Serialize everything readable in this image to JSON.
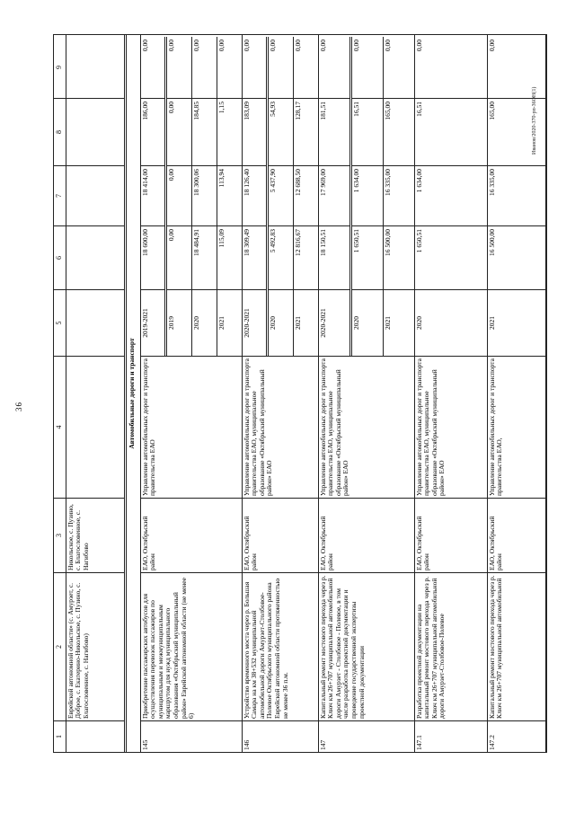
{
  "page": {
    "number": "36",
    "footnote": "Иванов/2020-370-рп-36ОН(1)"
  },
  "table": {
    "col_headers": [
      "1",
      "2",
      "3",
      "4",
      "5",
      "6",
      "7",
      "8",
      "9"
    ],
    "section_title": "Автомобильные дороги и транспорт",
    "carryover_row": {
      "name": "Еврейской автономной области» (с. Амурзет, с. Доброе, с. Екатерино-Никольское, с. Пузино, с. Благословенное, с. Нагибово)",
      "location": "Никольское, с. Пузино, с. Благословенное, с. Нагибово"
    },
    "rows": [
      {
        "num": "145",
        "name": "Приобретение пассажирских автобусов для осуществления перевозок пассажиров по муниципальным и межмуниципальным маршрутом для нужд муниципального образования «Октябрьский муниципальный район» Еврейской автономной области (не менее 6)",
        "location": "ЕАО, Октябрьский район",
        "management": "Управление автомобильных дорог и транспорта правительства ЕАО",
        "periods": [
          [
            "2019-2021",
            "18 600,00",
            "18 414,00",
            "186,00",
            "0,00"
          ],
          [
            "2019",
            "0,00",
            "0,00",
            "0,00",
            "0,00"
          ],
          [
            "2020",
            "18 484,91",
            "18 300,06",
            "184,85",
            "0,00"
          ],
          [
            "2021",
            "115,09",
            "113,94",
            "1,15",
            "0,00"
          ]
        ]
      },
      {
        "num": "146",
        "name": "Устройство временного моста через р. Большая Самара на км 38+532 муниципальной автомобильной дороги Амурзет-Столбовое-Полевое Октябрьского муниципального района Еврейской автономной области протяженностью не менее 36 п.м.",
        "location": "ЕАО, Октябрьский район",
        "management": "Управление автомобильных дорог и транспорта правительства ЕАО, муниципальное образование «Октябрьский муниципальный район» ЕАО",
        "periods": [
          [
            "2020-2021",
            "18 309,49",
            "18 126,40",
            "183,09",
            "0,00"
          ],
          [
            "2020",
            "5 492,83",
            "5 437,90",
            "54,93",
            "0,00"
          ],
          [
            "2021",
            "12 816,67",
            "12 688,50",
            "128,17",
            "0,00"
          ]
        ]
      },
      {
        "num": "147",
        "name": "Капитальный ремонт мостового перехода через р. Ключ км 26+707 муниципальной автомобильной дороги Амурзет - Столбовое - Полевое, в том числе разработка проектной документации и проведение государственной экспертизы проектной документации",
        "location": "ЕАО, Октябрьский район",
        "management": "Управление автомобильных дорог и транспорта правительства ЕАО, муниципальное образование «Октябрьский муниципальный район» ЕАО",
        "periods": [
          [
            "2020-2021",
            "18 150,51",
            "17 969,00",
            "181,51",
            "0,00"
          ],
          [
            "2020",
            "1 650,51",
            "1 634,00",
            "16,51",
            "0,00"
          ],
          [
            "2021",
            "16 500,00",
            "16 335,00",
            "165,00",
            "0,00"
          ]
        ]
      },
      {
        "num": "147.1",
        "name": "Разработка проектной документации на капитальный ремонт мостового перехода через р. Ключ км 26+707 муниципальной автомобильной дороги Амурзет-Столбовое-Полевое",
        "location": "ЕАО, Октябрьский район",
        "management": "Управление автомобильных дорог и транспорта правительства ЕАО, муниципальное образование «Октябрьский муниципальный район» ЕАО",
        "periods": [
          [
            "2020",
            "1 650,51",
            "1 634,00",
            "16,51",
            "0,00"
          ]
        ]
      },
      {
        "num": "147.2",
        "name": "Капитальный ремонт мостового перехода через р. Ключ км 26+707 муниципальной автомобильной",
        "location": "ЕАО, Октябрьский район",
        "management": "Управление автомобильных дорог и транспорта правительства ЕАО,",
        "periods": [
          [
            "2021",
            "16 500,00",
            "16 335,00",
            "165,00",
            "0,00"
          ]
        ]
      }
    ]
  }
}
